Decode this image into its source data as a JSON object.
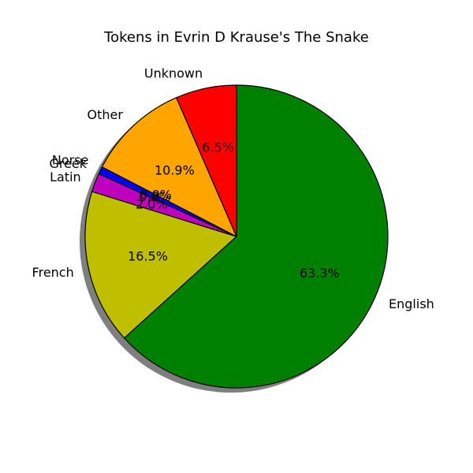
{
  "chart_data": {
    "type": "pie",
    "title": "Tokens in Evrin D Krause's The Snake",
    "slices": [
      {
        "label": "English",
        "value": 63.3,
        "pct_label": "63.3%",
        "color": "#008000"
      },
      {
        "label": "French",
        "value": 16.5,
        "pct_label": "16.5%",
        "color": "#bfbf00"
      },
      {
        "label": "Latin",
        "value": 2.0,
        "pct_label": "2.0%",
        "color": "#bf00bf"
      },
      {
        "label": "Greek",
        "value": 0.8,
        "pct_label": "0.8%",
        "color": "#0000ff"
      },
      {
        "label": "Norse",
        "value": 0.0,
        "pct_label": "0.0%",
        "color": "#00bfbf"
      },
      {
        "label": "Other",
        "value": 10.9,
        "pct_label": "10.9%",
        "color": "#ffa500"
      },
      {
        "label": "Unknown",
        "value": 6.5,
        "pct_label": "6.5%",
        "color": "#ff0000"
      }
    ],
    "start_angle_deg": 90,
    "direction": "clockwise",
    "shadow": true
  }
}
